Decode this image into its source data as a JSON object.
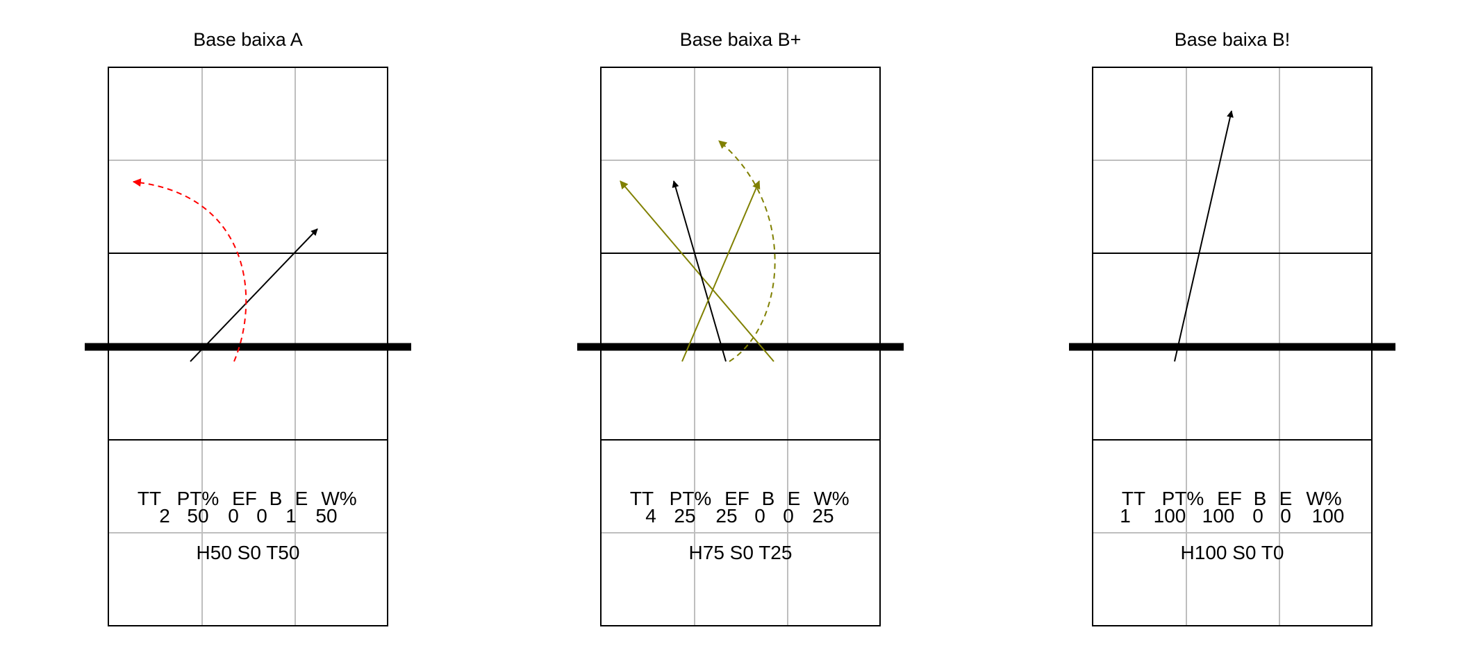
{
  "stats_header": [
    "TT",
    "PT%",
    "EF",
    "B",
    "E",
    "W%"
  ],
  "panels": [
    {
      "title": "Base baixa A",
      "stats_values": [
        "2",
        "50",
        "0",
        "0",
        "1",
        "50"
      ],
      "summary": "H50 S0 T50",
      "attacks": [
        {
          "color": "#000000",
          "dashed": false,
          "curved": false
        },
        {
          "color": "#ff0000",
          "dashed": true,
          "curved": true
        }
      ]
    },
    {
      "title": "Base baixa B+",
      "stats_values": [
        "4",
        "25",
        "25",
        "0",
        "0",
        "25"
      ],
      "summary": "H75 S0 T25",
      "attacks": [
        {
          "color": "#808000",
          "dashed": false,
          "curved": false
        },
        {
          "color": "#000000",
          "dashed": false,
          "curved": false
        },
        {
          "color": "#808000",
          "dashed": false,
          "curved": false
        },
        {
          "color": "#808000",
          "dashed": true,
          "curved": true
        }
      ]
    },
    {
      "title": "Base baixa B!",
      "stats_values": [
        "1",
        "100",
        "100",
        "0",
        "0",
        "100"
      ],
      "summary": "H100 S0 T0",
      "attacks": [
        {
          "color": "#000000",
          "dashed": false,
          "curved": false
        }
      ]
    }
  ]
}
